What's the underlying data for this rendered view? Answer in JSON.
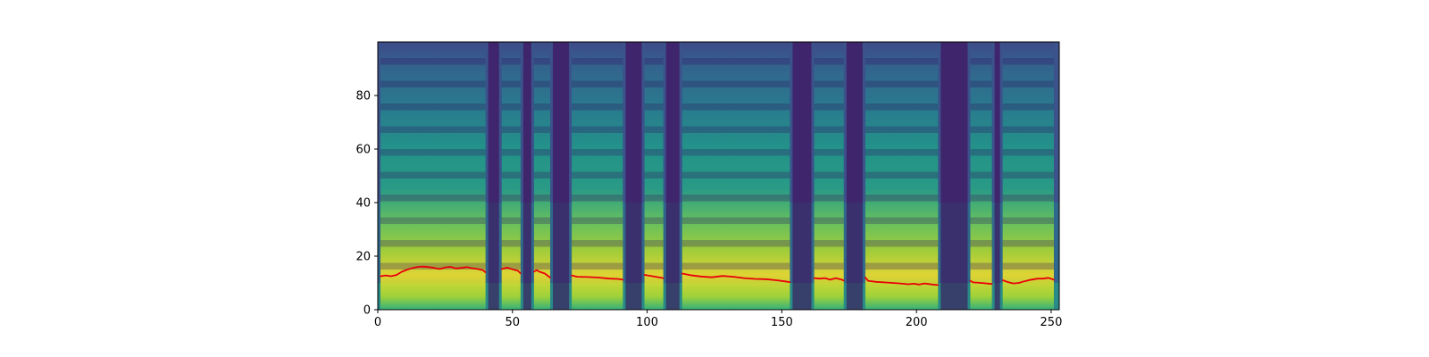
{
  "chart_data": {
    "type": "heatmap",
    "title": "",
    "xlabel": "",
    "ylabel": "",
    "xlim": [
      0,
      253
    ],
    "ylim": [
      0,
      100
    ],
    "x_ticks": [
      0,
      50,
      100,
      150,
      200,
      250
    ],
    "y_ticks": [
      0,
      20,
      40,
      60,
      80
    ],
    "grid": false,
    "colormap": "viridis",
    "colors": {
      "overlay_line": "#e8000b",
      "colormap_low": "#440154",
      "colormap_high": "#fde725"
    },
    "segments": [
      {
        "start": 1,
        "end": 40
      },
      {
        "start": 46,
        "end": 53
      },
      {
        "start": 58,
        "end": 64
      },
      {
        "start": 72,
        "end": 91
      },
      {
        "start": 99,
        "end": 106
      },
      {
        "start": 113,
        "end": 153
      },
      {
        "start": 162,
        "end": 173
      },
      {
        "start": 181,
        "end": 208
      },
      {
        "start": 220,
        "end": 228
      },
      {
        "start": 232,
        "end": 251
      }
    ],
    "series": [
      {
        "type": "line",
        "segments": [
          [
            [
              1,
              12.5
            ],
            [
              3,
              12.8
            ],
            [
              5,
              12.5
            ],
            [
              7,
              13.0
            ],
            [
              9,
              14.2
            ],
            [
              11,
              15.0
            ],
            [
              13,
              15.6
            ],
            [
              15,
              16.0
            ],
            [
              17,
              16.1
            ],
            [
              19,
              15.9
            ],
            [
              21,
              15.6
            ],
            [
              23,
              15.2
            ],
            [
              25,
              15.8
            ],
            [
              27,
              16.0
            ],
            [
              29,
              15.4
            ],
            [
              31,
              15.6
            ],
            [
              33,
              15.9
            ],
            [
              35,
              15.5
            ],
            [
              37,
              15.2
            ],
            [
              39,
              14.8
            ],
            [
              40,
              14.0
            ]
          ],
          [
            [
              46,
              15.2
            ],
            [
              48,
              15.7
            ],
            [
              50,
              15.1
            ],
            [
              52,
              14.6
            ],
            [
              53,
              13.6
            ]
          ],
          [
            [
              58,
              14.2
            ],
            [
              59,
              14.8
            ],
            [
              60,
              14.2
            ],
            [
              62,
              13.5
            ],
            [
              64,
              12.0
            ]
          ],
          [
            [
              72,
              12.8
            ],
            [
              74,
              12.3
            ],
            [
              78,
              12.2
            ],
            [
              82,
              12.0
            ],
            [
              86,
              11.6
            ],
            [
              89,
              11.5
            ],
            [
              91,
              11.2
            ]
          ],
          [
            [
              99,
              13.0
            ],
            [
              102,
              12.5
            ],
            [
              106,
              11.8
            ]
          ],
          [
            [
              113,
              13.5
            ],
            [
              116,
              12.9
            ],
            [
              120,
              12.4
            ],
            [
              124,
              12.1
            ],
            [
              128,
              12.6
            ],
            [
              132,
              12.3
            ],
            [
              136,
              11.8
            ],
            [
              140,
              11.5
            ],
            [
              144,
              11.4
            ],
            [
              148,
              11.0
            ],
            [
              151,
              10.6
            ],
            [
              153,
              10.3
            ]
          ],
          [
            [
              162,
              11.8
            ],
            [
              164,
              11.6
            ],
            [
              166,
              11.8
            ],
            [
              168,
              11.2
            ],
            [
              170,
              11.8
            ],
            [
              172,
              11.3
            ],
            [
              173,
              10.9
            ]
          ],
          [
            [
              181,
              12.0
            ],
            [
              182,
              10.8
            ],
            [
              185,
              10.4
            ],
            [
              188,
              10.2
            ],
            [
              191,
              10.0
            ],
            [
              194,
              9.8
            ],
            [
              197,
              9.5
            ],
            [
              199,
              9.7
            ],
            [
              201,
              9.4
            ],
            [
              203,
              9.8
            ],
            [
              206,
              9.4
            ],
            [
              208,
              9.2
            ]
          ],
          [
            [
              220,
              10.8
            ],
            [
              221,
              10.2
            ],
            [
              224,
              10.0
            ],
            [
              228,
              9.6
            ]
          ],
          [
            [
              232,
              11.0
            ],
            [
              234,
              10.3
            ],
            [
              236,
              9.8
            ],
            [
              238,
              10.0
            ],
            [
              240,
              10.6
            ],
            [
              242,
              11.1
            ],
            [
              245,
              11.6
            ],
            [
              247,
              11.6
            ],
            [
              249,
              11.9
            ],
            [
              251,
              11.2
            ]
          ]
        ]
      }
    ]
  }
}
